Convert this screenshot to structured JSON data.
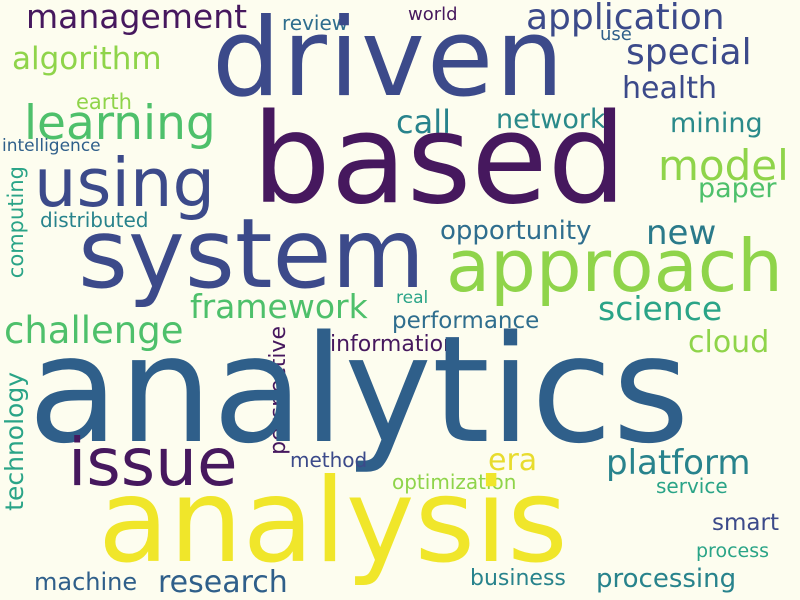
{
  "colors": {
    "background": "#fdfdef",
    "dark_purple": "#46185e",
    "indigo": "#3c4a8a",
    "steel_blue": "#2f5f8a",
    "teal": "#28838c",
    "green_teal": "#2aa487",
    "green": "#4ec06b",
    "lime": "#8fd44a",
    "yellow": "#f0e62a"
  },
  "words": {
    "analytics": "analytics",
    "analysis": "analysis",
    "based": "based",
    "driven": "driven",
    "system": "system",
    "approach": "approach",
    "using": "using",
    "issue": "issue",
    "learning": "learning",
    "application": "application",
    "management": "management",
    "special": "special",
    "algorithm": "algorithm",
    "health": "health",
    "model": "model",
    "challenge": "challenge",
    "framework": "framework",
    "platform": "platform",
    "research": "research",
    "processing": "processing",
    "science": "science",
    "opportunity": "opportunity",
    "new": "new",
    "network": "network",
    "call": "call",
    "mining": "mining",
    "paper": "paper",
    "cloud": "cloud",
    "performance": "performance",
    "era": "era",
    "smart": "smart",
    "machine": "machine",
    "business": "business",
    "technology": "technology",
    "computing": "computing",
    "perspective": "perspective",
    "earth": "earth",
    "intelligence": "intelligence",
    "distributed": "distributed",
    "review": "review",
    "world": "world",
    "use": "use",
    "real": "real",
    "information": "information",
    "method": "method",
    "optimization": "optimization",
    "service": "service",
    "process": "process"
  }
}
